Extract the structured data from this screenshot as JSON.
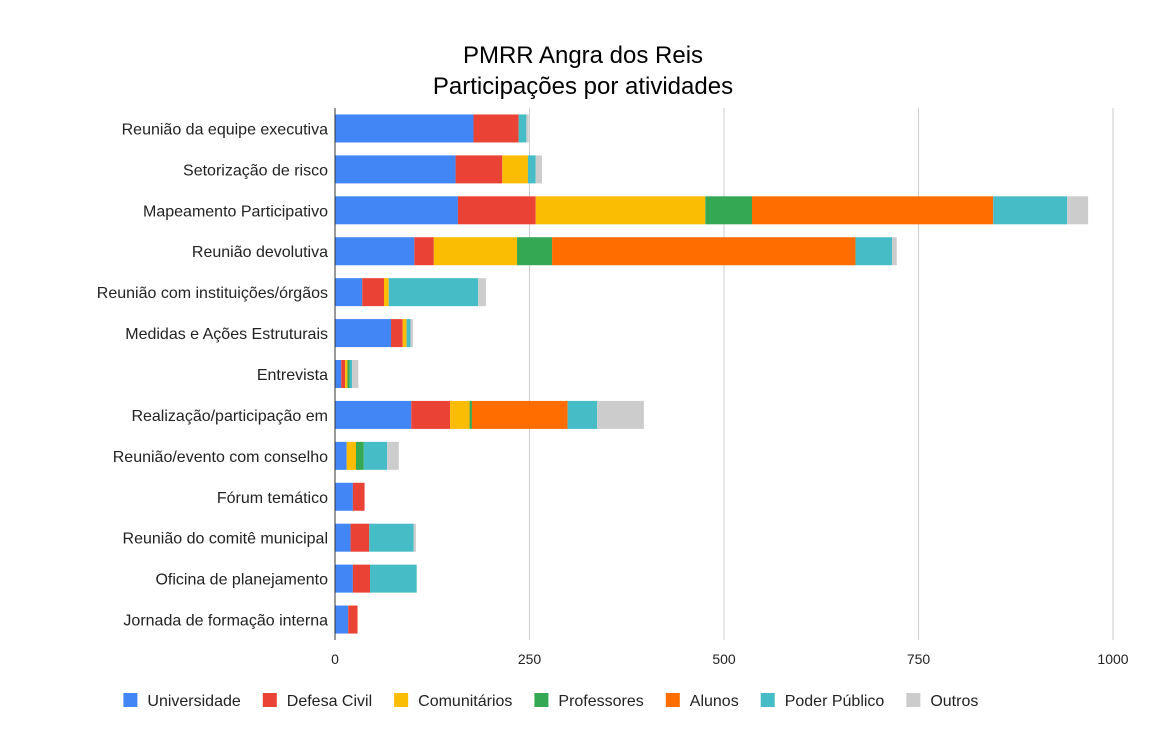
{
  "chart_data": {
    "type": "bar",
    "orientation": "horizontal",
    "stacked": true,
    "title": "PMRR Angra dos Reis",
    "subtitle": "Participações por atividades",
    "xlabel": "",
    "ylabel": "",
    "xlim": [
      0,
      1000
    ],
    "x_ticks": [
      "0",
      "250",
      "500",
      "750",
      "1000"
    ],
    "x_tick_values": [
      0,
      250,
      500,
      750,
      1000
    ],
    "grid": true,
    "legend_position": "bottom",
    "categories": [
      "Reunião da equipe executiva",
      "Setorização de risco",
      "Mapeamento Participativo",
      "Reunião devolutiva",
      "Reunião com instituições/órgãos",
      "Medidas e Ações Estruturais",
      "Entrevista",
      "Realização/participação em",
      "Reunião/evento com conselho",
      "Fórum temático",
      "Reunião do comitê municipal",
      "Oficina de planejamento",
      "Jornada de formação interna"
    ],
    "series": [
      {
        "name": "Universidade",
        "color": "#4285f4",
        "values": [
          178,
          155,
          158,
          102,
          35,
          72,
          8,
          98,
          15,
          23,
          20,
          23,
          17
        ]
      },
      {
        "name": "Defesa Civil",
        "color": "#ea4335",
        "values": [
          58,
          60,
          100,
          25,
          28,
          15,
          5,
          50,
          0,
          15,
          24,
          22,
          12
        ]
      },
      {
        "name": "Comunitários",
        "color": "#fbbc04",
        "values": [
          0,
          33,
          218,
          107,
          6,
          5,
          3,
          25,
          12,
          0,
          0,
          0,
          0
        ]
      },
      {
        "name": "Professores",
        "color": "#34a853",
        "values": [
          0,
          0,
          60,
          45,
          0,
          0,
          3,
          3,
          10,
          0,
          0,
          0,
          0
        ]
      },
      {
        "name": "Alunos",
        "color": "#ff6d01",
        "values": [
          0,
          0,
          310,
          390,
          0,
          0,
          0,
          123,
          0,
          0,
          0,
          0,
          0
        ]
      },
      {
        "name": "Poder Público",
        "color": "#46bdc6",
        "values": [
          10,
          10,
          95,
          47,
          115,
          5,
          3,
          38,
          30,
          0,
          57,
          60,
          0
        ]
      },
      {
        "name": "Outros",
        "color": "#cccccc",
        "values": [
          3,
          8,
          27,
          6,
          10,
          3,
          8,
          60,
          15,
          0,
          3,
          0,
          0
        ]
      }
    ]
  }
}
